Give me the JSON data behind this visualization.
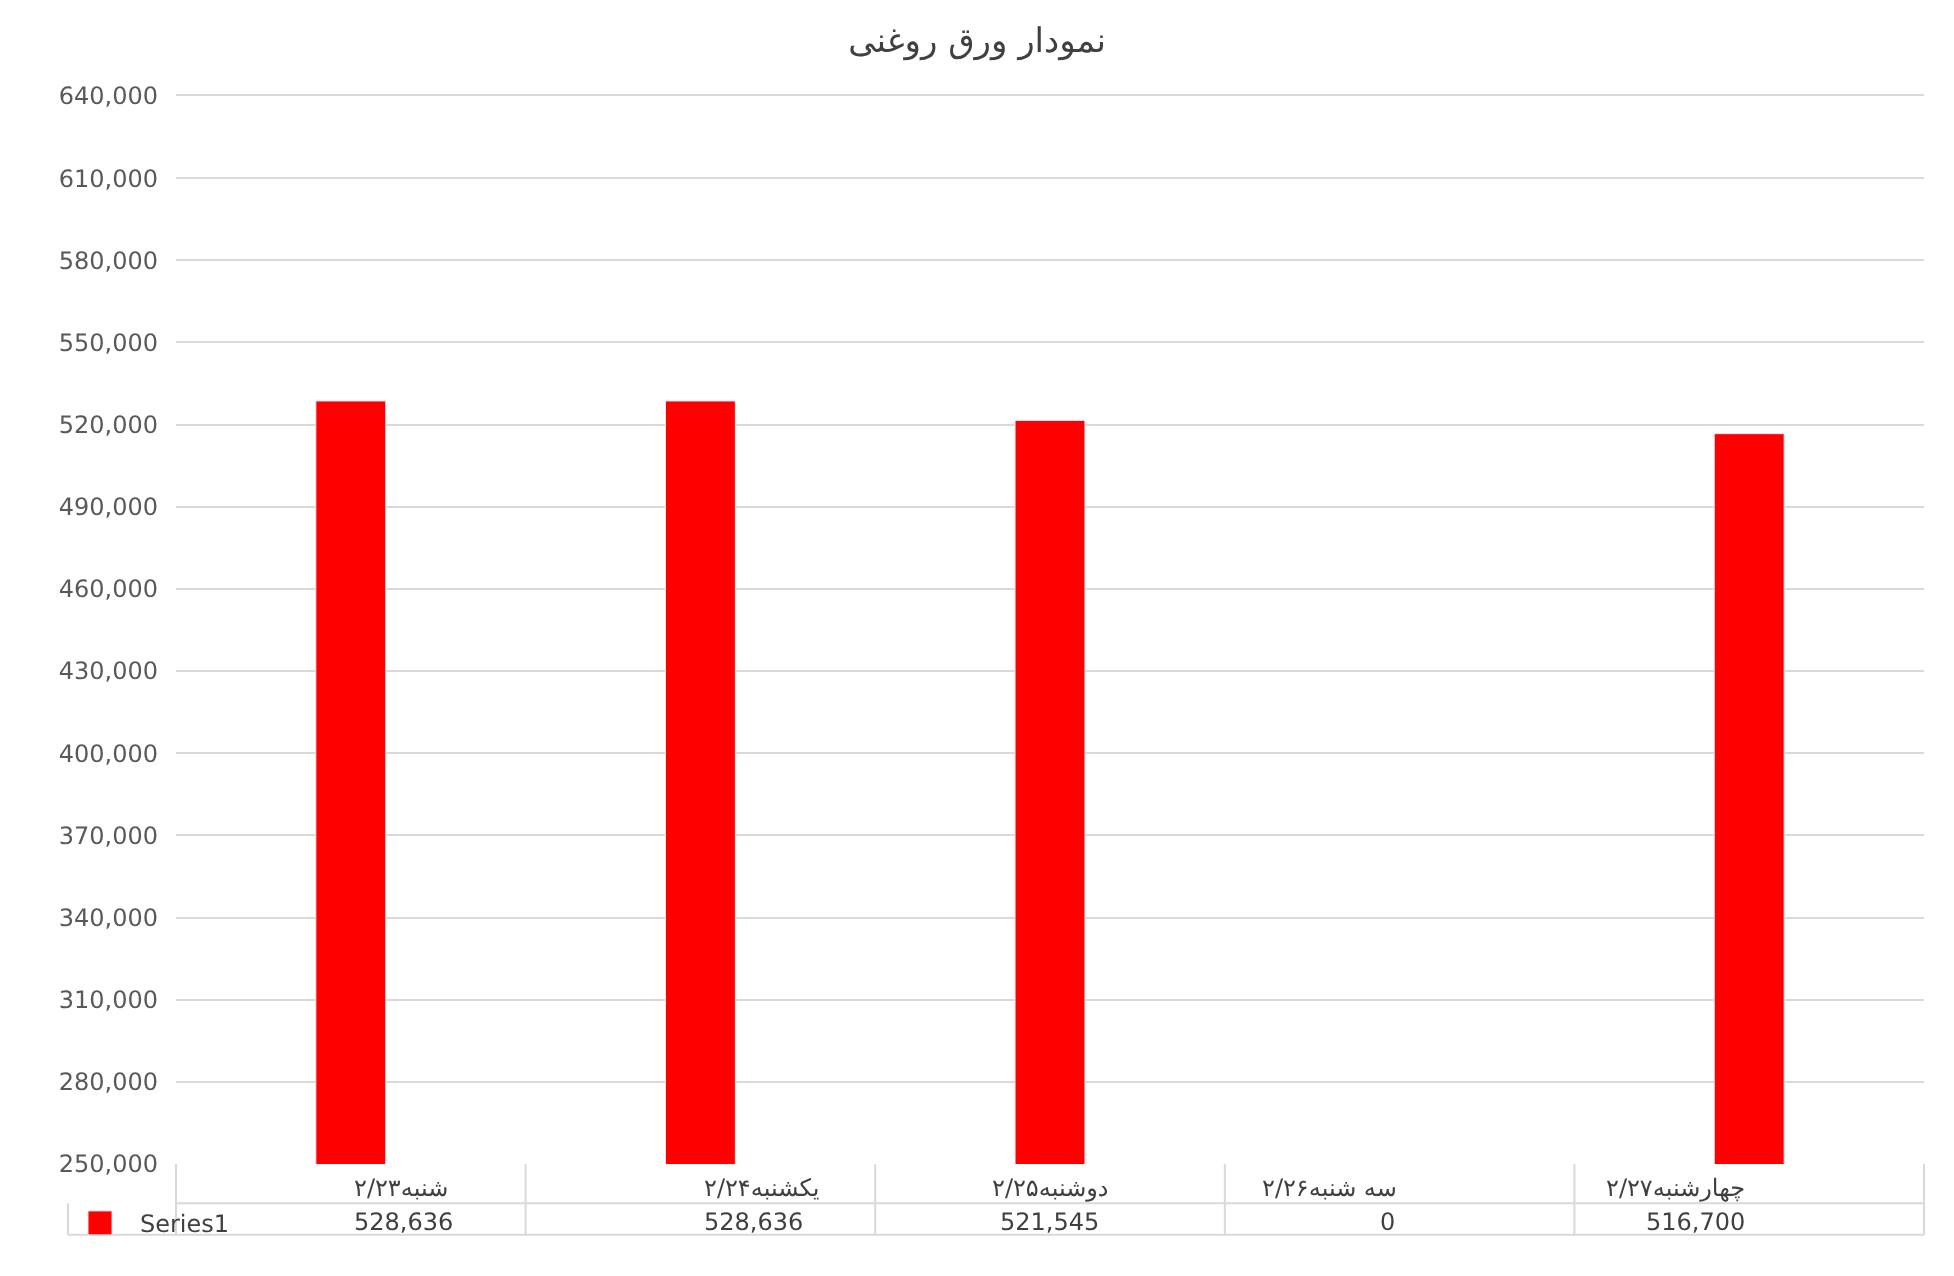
{
  "chart_data": {
    "type": "bar",
    "title": "نمودار ورق روغنی",
    "categories": [
      "شنبه۲/۲۳",
      "یکشنبه۲/۲۴",
      "دوشنبه۲/۲۵",
      "سه شنبه۲/۲۶",
      "چهارشنبه۲/۲۷"
    ],
    "series": [
      {
        "name": "Series1",
        "color": "#ff0000",
        "values": [
          528636,
          528636,
          521545,
          null,
          516700
        ],
        "value_labels": [
          "528,636",
          "528,636",
          "521,545",
          "0",
          "516,700"
        ]
      }
    ],
    "ylim": [
      250000,
      640000
    ],
    "yticks": [
      {
        "value": 250000,
        "label": "250,000"
      },
      {
        "value": 280000,
        "label": "280,000"
      },
      {
        "value": 310000,
        "label": "310,000"
      },
      {
        "value": 340000,
        "label": "340,000"
      },
      {
        "value": 370000,
        "label": "370,000"
      },
      {
        "value": 400000,
        "label": "400,000"
      },
      {
        "value": 430000,
        "label": "430,000"
      },
      {
        "value": 460000,
        "label": "460,000"
      },
      {
        "value": 490000,
        "label": "490,000"
      },
      {
        "value": 520000,
        "label": "520,000"
      },
      {
        "value": 550000,
        "label": "550,000"
      },
      {
        "value": 580000,
        "label": "580,000"
      },
      {
        "value": 610000,
        "label": "610,000"
      },
      {
        "value": 640000,
        "label": "640,000"
      }
    ],
    "grid": "y",
    "legend": "bottom left"
  }
}
